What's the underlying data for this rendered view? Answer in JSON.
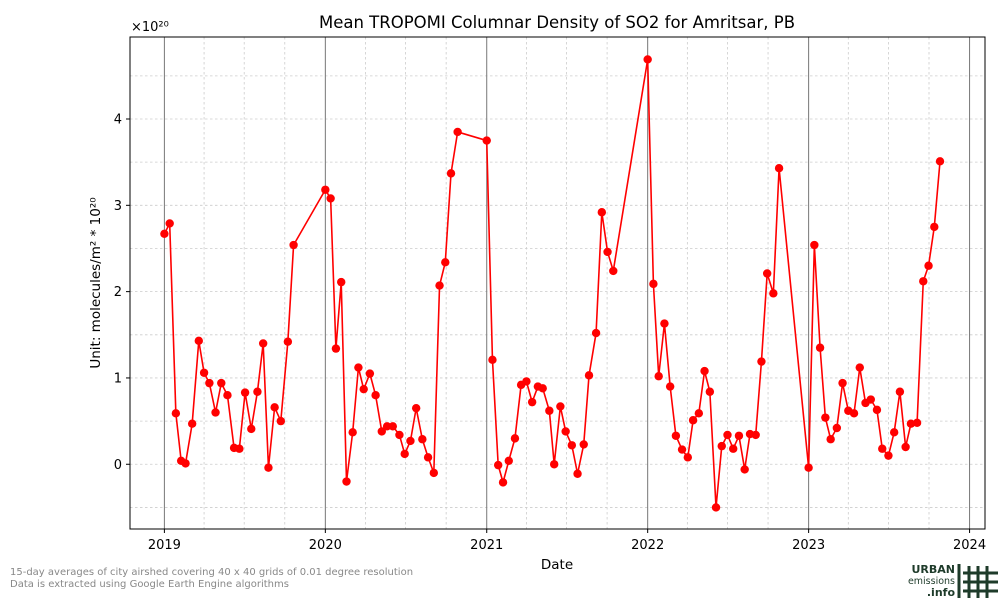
{
  "chart_data": {
    "type": "line",
    "title": "Mean TROPOMI Columnar Density of SO2 for Amritsar, PB",
    "xlabel": "Date",
    "ylabel": "Unit: molecules/m² * 10²⁰",
    "y_multiplier": "×10²⁰",
    "ylim": [
      -0.75,
      4.95
    ],
    "xlim": [
      "2018-10-15",
      "2024-02-05"
    ],
    "y_ticks": [
      0,
      1,
      2,
      3,
      4
    ],
    "x_ticks": [
      "2019",
      "2020",
      "2021",
      "2022",
      "2023",
      "2024"
    ],
    "grid": true,
    "line_color": "#ff0000",
    "series": [
      {
        "points": [
          [
            "2019-01-01",
            2.67
          ],
          [
            "2019-01-13",
            2.79
          ],
          [
            "2019-01-27",
            0.59
          ],
          [
            "2019-02-08",
            0.04
          ],
          [
            "2019-02-18",
            0.01
          ],
          [
            "2019-03-05",
            0.47
          ],
          [
            "2019-03-20",
            1.43
          ],
          [
            "2019-04-01",
            1.06
          ],
          [
            "2019-04-13",
            0.94
          ],
          [
            "2019-04-27",
            0.6
          ],
          [
            "2019-05-10",
            0.94
          ],
          [
            "2019-05-24",
            0.8
          ],
          [
            "2019-06-08",
            0.19
          ],
          [
            "2019-06-20",
            0.18
          ],
          [
            "2019-07-03",
            0.83
          ],
          [
            "2019-07-17",
            0.41
          ],
          [
            "2019-07-31",
            0.84
          ],
          [
            "2019-08-13",
            1.4
          ],
          [
            "2019-08-25",
            -0.04
          ],
          [
            "2019-09-08",
            0.66
          ],
          [
            "2019-09-22",
            0.5
          ],
          [
            "2019-10-08",
            1.42
          ],
          [
            "2019-10-21",
            2.54
          ],
          [
            "2020-01-01",
            3.18
          ],
          [
            "2020-01-13",
            3.08
          ],
          [
            "2020-01-25",
            1.34
          ],
          [
            "2020-02-06",
            2.11
          ],
          [
            "2020-02-18",
            -0.2
          ],
          [
            "2020-03-03",
            0.37
          ],
          [
            "2020-03-16",
            1.12
          ],
          [
            "2020-03-28",
            0.87
          ],
          [
            "2020-04-11",
            1.05
          ],
          [
            "2020-04-24",
            0.8
          ],
          [
            "2020-05-08",
            0.38
          ],
          [
            "2020-05-20",
            0.44
          ],
          [
            "2020-06-02",
            0.44
          ],
          [
            "2020-06-17",
            0.34
          ],
          [
            "2020-06-29",
            0.12
          ],
          [
            "2020-07-12",
            0.27
          ],
          [
            "2020-07-25",
            0.65
          ],
          [
            "2020-08-08",
            0.29
          ],
          [
            "2020-08-21",
            0.08
          ],
          [
            "2020-09-03",
            -0.1
          ],
          [
            "2020-09-16",
            2.07
          ],
          [
            "2020-09-29",
            2.34
          ],
          [
            "2020-10-12",
            3.37
          ],
          [
            "2020-10-27",
            3.85
          ],
          [
            "2021-01-01",
            3.75
          ],
          [
            "2021-01-14",
            1.21
          ],
          [
            "2021-01-27",
            -0.01
          ],
          [
            "2021-02-07",
            -0.21
          ],
          [
            "2021-02-20",
            0.04
          ],
          [
            "2021-03-06",
            0.3
          ],
          [
            "2021-03-20",
            0.92
          ],
          [
            "2021-04-01",
            0.96
          ],
          [
            "2021-04-14",
            0.72
          ],
          [
            "2021-04-27",
            0.9
          ],
          [
            "2021-05-08",
            0.88
          ],
          [
            "2021-05-23",
            0.62
          ],
          [
            "2021-06-03",
            0.0
          ],
          [
            "2021-06-17",
            0.67
          ],
          [
            "2021-06-29",
            0.38
          ],
          [
            "2021-07-13",
            0.22
          ],
          [
            "2021-07-26",
            -0.11
          ],
          [
            "2021-08-09",
            0.23
          ],
          [
            "2021-08-21",
            1.03
          ],
          [
            "2021-09-06",
            1.52
          ],
          [
            "2021-09-19",
            2.92
          ],
          [
            "2021-10-02",
            2.46
          ],
          [
            "2021-10-15",
            2.24
          ],
          [
            "2022-01-01",
            4.69
          ],
          [
            "2022-01-14",
            2.09
          ],
          [
            "2022-01-26",
            1.02
          ],
          [
            "2022-02-08",
            1.63
          ],
          [
            "2022-02-21",
            0.9
          ],
          [
            "2022-03-06",
            0.33
          ],
          [
            "2022-03-20",
            0.17
          ],
          [
            "2022-04-02",
            0.08
          ],
          [
            "2022-04-14",
            0.51
          ],
          [
            "2022-04-27",
            0.59
          ],
          [
            "2022-05-10",
            1.08
          ],
          [
            "2022-05-22",
            0.84
          ],
          [
            "2022-06-05",
            -0.5
          ],
          [
            "2022-06-18",
            0.21
          ],
          [
            "2022-07-01",
            0.34
          ],
          [
            "2022-07-14",
            0.18
          ],
          [
            "2022-07-27",
            0.33
          ],
          [
            "2022-08-09",
            -0.06
          ],
          [
            "2022-08-21",
            0.35
          ],
          [
            "2022-09-03",
            0.34
          ],
          [
            "2022-09-16",
            1.19
          ],
          [
            "2022-09-29",
            2.21
          ],
          [
            "2022-10-13",
            1.98
          ],
          [
            "2022-10-26",
            3.43
          ],
          [
            "2023-01-01",
            -0.04
          ],
          [
            "2023-01-14",
            2.54
          ],
          [
            "2023-01-27",
            1.35
          ],
          [
            "2023-02-08",
            0.54
          ],
          [
            "2023-02-20",
            0.29
          ],
          [
            "2023-03-06",
            0.42
          ],
          [
            "2023-03-19",
            0.94
          ],
          [
            "2023-04-01",
            0.62
          ],
          [
            "2023-04-14",
            0.59
          ],
          [
            "2023-04-27",
            1.12
          ],
          [
            "2023-05-10",
            0.71
          ],
          [
            "2023-05-22",
            0.75
          ],
          [
            "2023-06-05",
            0.63
          ],
          [
            "2023-06-17",
            0.18
          ],
          [
            "2023-07-01",
            0.1
          ],
          [
            "2023-07-14",
            0.37
          ],
          [
            "2023-07-27",
            0.84
          ],
          [
            "2023-08-09",
            0.2
          ],
          [
            "2023-08-21",
            0.47
          ],
          [
            "2023-09-04",
            0.48
          ],
          [
            "2023-09-18",
            2.12
          ],
          [
            "2023-09-30",
            2.3
          ],
          [
            "2023-10-13",
            2.75
          ],
          [
            "2023-10-26",
            3.51
          ]
        ]
      }
    ]
  },
  "footnote": {
    "line1": "15-day averages of city airshed covering 40 x 40 grids of 0.01 degree resolution",
    "line2": "Data is extracted using Google Earth Engine algorithms"
  },
  "logo": {
    "line1": "URBAN",
    "line2": "emissions",
    "line3": ".info",
    "color": "#1e3b2a",
    "icon": "hash-grid-icon"
  }
}
